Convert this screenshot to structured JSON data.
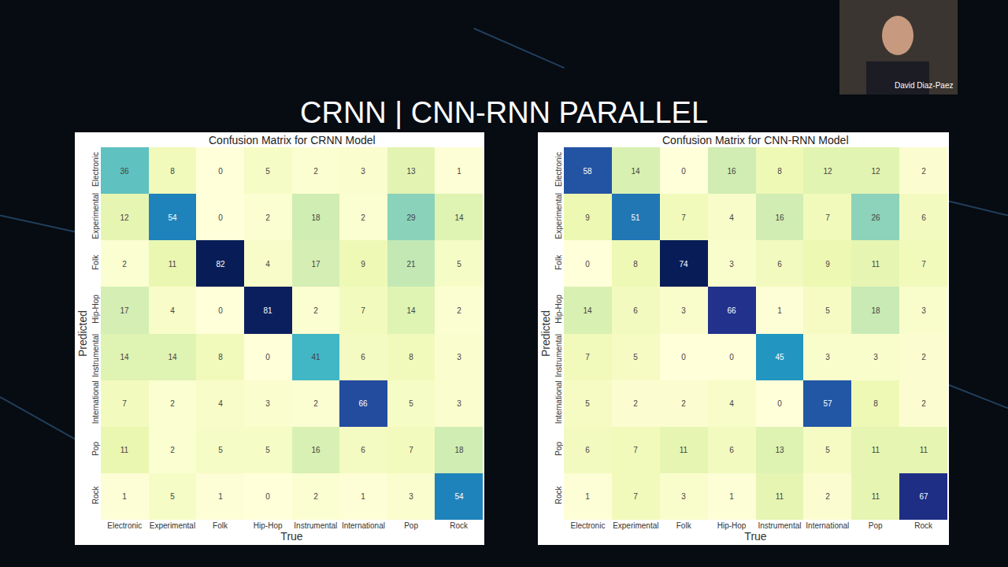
{
  "page": {
    "title": "CRNN | CNN-RNN PARALLEL",
    "presenter": "David Diaz-Paez"
  },
  "chart_data": [
    {
      "type": "heatmap",
      "title": "Confusion Matrix for CRNN Model",
      "x_label": "True",
      "y_label": "Predicted",
      "x": [
        "Electronic",
        "Experimental",
        "Folk",
        "Hip-Hop",
        "Instrumental",
        "International",
        "Pop",
        "Rock"
      ],
      "y": [
        "Electronic",
        "Experimental",
        "Folk",
        "Hip-Hop",
        "Instrumental",
        "International",
        "Pop",
        "Rock"
      ],
      "z": [
        [
          36,
          8,
          0,
          5,
          2,
          3,
          13,
          1
        ],
        [
          12,
          54,
          0,
          2,
          18,
          2,
          29,
          14
        ],
        [
          2,
          11,
          82,
          4,
          17,
          9,
          21,
          5
        ],
        [
          17,
          4,
          0,
          81,
          2,
          7,
          14,
          2
        ],
        [
          14,
          14,
          8,
          0,
          41,
          6,
          8,
          3
        ],
        [
          7,
          2,
          4,
          3,
          2,
          66,
          5,
          3
        ],
        [
          11,
          2,
          5,
          5,
          16,
          6,
          7,
          18
        ],
        [
          1,
          5,
          1,
          0,
          2,
          1,
          3,
          54
        ]
      ],
      "color": "YlGnBu",
      "color_range": [
        0,
        82
      ],
      "data_labels": true
    },
    {
      "type": "heatmap",
      "title": "Confusion Matrix for CNN-RNN Model",
      "x_label": "True",
      "y_label": "Predicted",
      "x": [
        "Electronic",
        "Experimental",
        "Folk",
        "Hip-Hop",
        "Instrumental",
        "International",
        "Pop",
        "Rock"
      ],
      "y": [
        "Electronic",
        "Experimental",
        "Folk",
        "Hip-Hop",
        "Instrumental",
        "International",
        "Pop",
        "Rock"
      ],
      "z": [
        [
          58,
          14,
          0,
          16,
          8,
          12,
          12,
          2
        ],
        [
          9,
          51,
          7,
          4,
          16,
          7,
          26,
          6
        ],
        [
          0,
          8,
          74,
          3,
          6,
          9,
          11,
          7
        ],
        [
          14,
          6,
          3,
          66,
          1,
          5,
          18,
          3
        ],
        [
          7,
          5,
          0,
          0,
          45,
          3,
          3,
          2
        ],
        [
          5,
          2,
          2,
          4,
          0,
          57,
          8,
          2
        ],
        [
          6,
          7,
          11,
          6,
          13,
          5,
          11,
          11
        ],
        [
          1,
          7,
          3,
          1,
          11,
          2,
          11,
          67
        ]
      ],
      "color": "YlGnBu",
      "color_range": [
        0,
        74
      ],
      "data_labels": true
    }
  ]
}
